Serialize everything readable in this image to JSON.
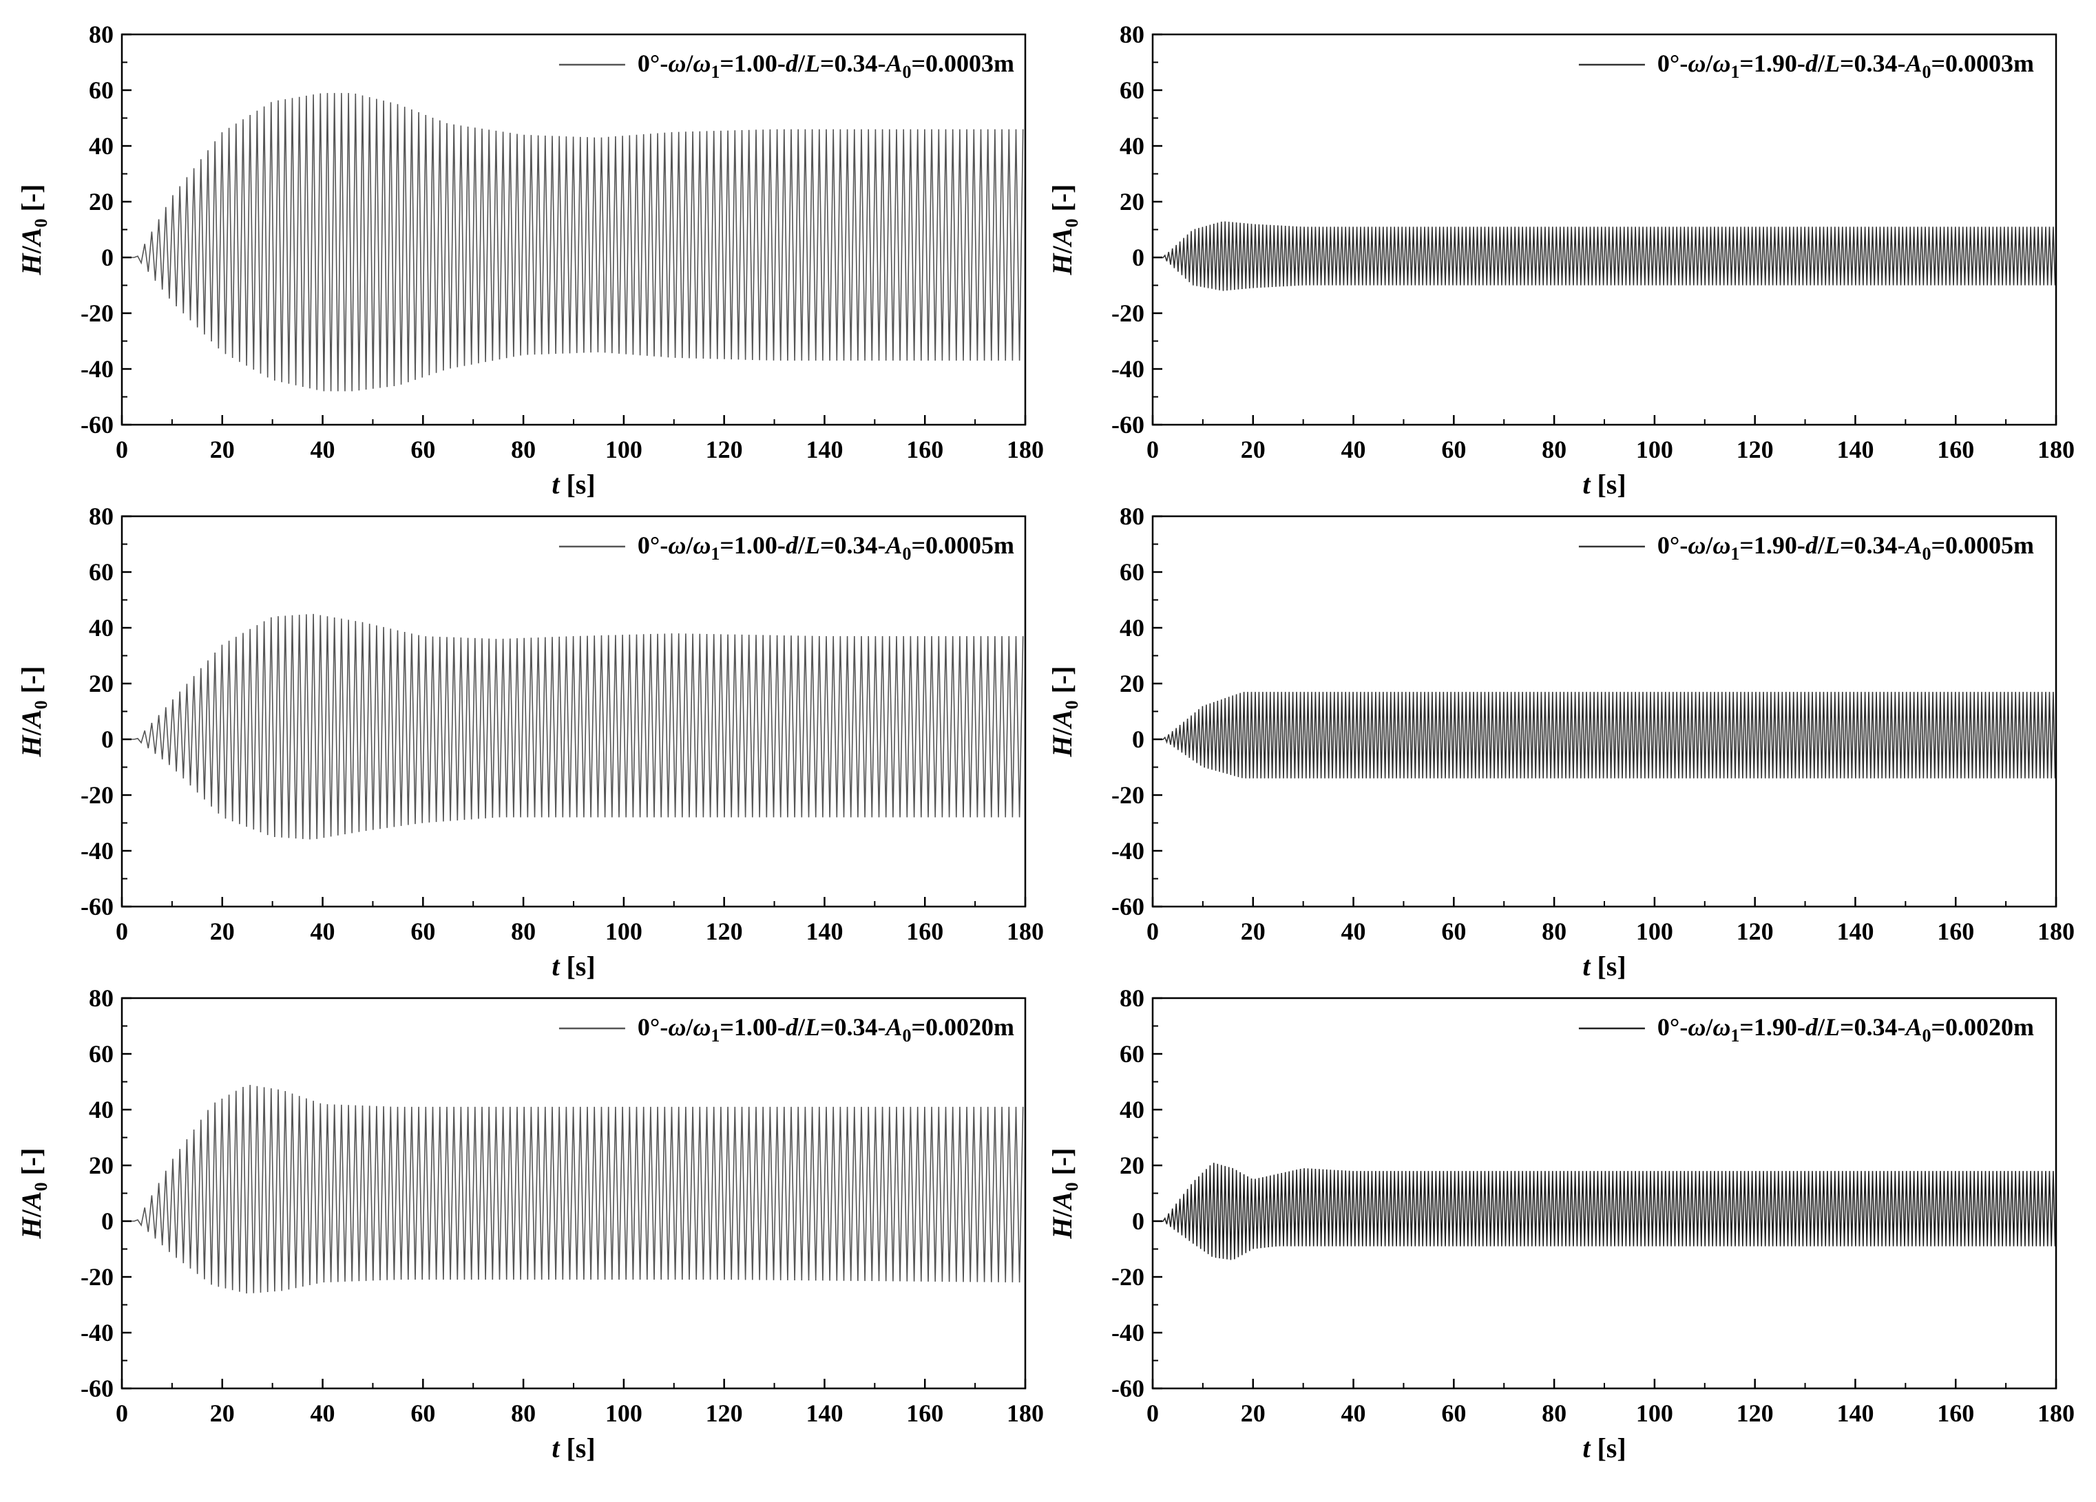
{
  "chart_data": [
    {
      "type": "line",
      "panel": "top-left",
      "legend": {
        "pre": "0°-",
        "omega": "ω",
        "slash": "/",
        "omega1": "ω",
        "one": "1",
        "eq1": "=1.00-",
        "d": "d",
        "slash2": "/",
        "L": "L",
        "eq2": "=0.34-",
        "A": "A",
        "zero": "0",
        "eq3": "=0.0003m"
      },
      "series_color": "#555555",
      "xlim": [
        0,
        180
      ],
      "ylim": [
        -60,
        80
      ],
      "xticks": [
        "0",
        "20",
        "40",
        "60",
        "80",
        "100",
        "120",
        "140",
        "160",
        "180"
      ],
      "yticks": [
        "-60",
        "-40",
        "-20",
        "0",
        "20",
        "40",
        "60",
        "80"
      ],
      "xlabel": {
        "var": "t",
        "unit": " [s]"
      },
      "ylabel": {
        "var1": "H",
        "slash": "/",
        "var2": "A",
        "sub": "0",
        "unit": " [-]"
      },
      "envelope": {
        "t": [
          0,
          3,
          10,
          20,
          30,
          40,
          46,
          55,
          65,
          80,
          95,
          110,
          130,
          150,
          180
        ],
        "upper": [
          0,
          0,
          22,
          45,
          56,
          59,
          59,
          55,
          48,
          44,
          43,
          45,
          46,
          46,
          46
        ],
        "lower": [
          0,
          0,
          -16,
          -34,
          -44,
          -48,
          -48,
          -46,
          -40,
          -35,
          -34,
          -36,
          -37,
          -37,
          -37
        ]
      },
      "period_s": 1.4
    },
    {
      "type": "line",
      "panel": "top-right",
      "legend": {
        "pre": "0°-",
        "omega": "ω",
        "slash": "/",
        "omega1": "ω",
        "one": "1",
        "eq1": "=1.90-",
        "d": "d",
        "slash2": "/",
        "L": "L",
        "eq2": "=0.34-",
        "A": "A",
        "zero": "0",
        "eq3": "=0.0003m"
      },
      "series_color": "#333333",
      "xlim": [
        0,
        180
      ],
      "ylim": [
        -60,
        80
      ],
      "xticks": [
        "0",
        "20",
        "40",
        "60",
        "80",
        "100",
        "120",
        "140",
        "160",
        "180"
      ],
      "yticks": [
        "-60",
        "-40",
        "-20",
        "0",
        "20",
        "40",
        "60",
        "80"
      ],
      "xlabel": {
        "var": "t",
        "unit": " [s]"
      },
      "ylabel": {
        "var1": "H",
        "slash": "/",
        "var2": "A",
        "sub": "0",
        "unit": " [-]"
      },
      "envelope": {
        "t": [
          0,
          2,
          8,
          14,
          20,
          30,
          60,
          100,
          140,
          180
        ],
        "upper": [
          0,
          0,
          10,
          13,
          12,
          11,
          11,
          11,
          11,
          11
        ],
        "lower": [
          0,
          0,
          -10,
          -12,
          -11,
          -10,
          -10,
          -10,
          -10,
          -10
        ]
      },
      "period_s": 0.75
    },
    {
      "type": "line",
      "panel": "middle-left",
      "legend": {
        "pre": "0°-",
        "omega": "ω",
        "slash": "/",
        "omega1": "ω",
        "one": "1",
        "eq1": "=1.00-",
        "d": "d",
        "slash2": "/",
        "L": "L",
        "eq2": "=0.34-",
        "A": "A",
        "zero": "0",
        "eq3": "=0.0005m"
      },
      "series_color": "#555555",
      "xlim": [
        0,
        180
      ],
      "ylim": [
        -60,
        80
      ],
      "xticks": [
        "0",
        "20",
        "40",
        "60",
        "80",
        "100",
        "120",
        "140",
        "160",
        "180"
      ],
      "yticks": [
        "-60",
        "-40",
        "-20",
        "0",
        "20",
        "40",
        "60",
        "80"
      ],
      "xlabel": {
        "var": "t",
        "unit": " [s]"
      },
      "ylabel": {
        "var1": "H",
        "slash": "/",
        "var2": "A",
        "sub": "0",
        "unit": " [-]"
      },
      "envelope": {
        "t": [
          0,
          3,
          10,
          20,
          30,
          38,
          48,
          60,
          75,
          90,
          110,
          140,
          180
        ],
        "upper": [
          0,
          0,
          14,
          34,
          44,
          45,
          42,
          37,
          36,
          37,
          38,
          37,
          37
        ],
        "lower": [
          0,
          0,
          -10,
          -28,
          -35,
          -36,
          -33,
          -30,
          -28,
          -28,
          -28,
          -28,
          -28
        ]
      },
      "period_s": 1.4
    },
    {
      "type": "line",
      "panel": "middle-right",
      "legend": {
        "pre": "0°-",
        "omega": "ω",
        "slash": "/",
        "omega1": "ω",
        "one": "1",
        "eq1": "=1.90-",
        "d": "d",
        "slash2": "/",
        "L": "L",
        "eq2": "=0.34-",
        "A": "A",
        "zero": "0",
        "eq3": "=0.0005m"
      },
      "series_color": "#333333",
      "xlim": [
        0,
        180
      ],
      "ylim": [
        -60,
        80
      ],
      "xticks": [
        "0",
        "20",
        "40",
        "60",
        "80",
        "100",
        "120",
        "140",
        "160",
        "180"
      ],
      "yticks": [
        "-60",
        "-40",
        "-20",
        "0",
        "20",
        "40",
        "60",
        "80"
      ],
      "xlabel": {
        "var": "t",
        "unit": " [s]"
      },
      "ylabel": {
        "var1": "H",
        "slash": "/",
        "var2": "A",
        "sub": "0",
        "unit": " [-]"
      },
      "envelope": {
        "t": [
          0,
          2,
          10,
          18,
          25,
          60,
          100,
          140,
          180
        ],
        "upper": [
          0,
          0,
          12,
          17,
          17,
          17,
          17,
          17,
          17
        ],
        "lower": [
          0,
          0,
          -10,
          -14,
          -14,
          -14,
          -14,
          -14,
          -14
        ]
      },
      "period_s": 0.75
    },
    {
      "type": "line",
      "panel": "bottom-left",
      "legend": {
        "pre": "0°-",
        "omega": "ω",
        "slash": "/",
        "omega1": "ω",
        "one": "1",
        "eq1": "=1.00-",
        "d": "d",
        "slash2": "/",
        "L": "L",
        "eq2": "=0.34-",
        "A": "A",
        "zero": "0",
        "eq3": "=0.0020m"
      },
      "series_color": "#555555",
      "xlim": [
        0,
        180
      ],
      "ylim": [
        -60,
        80
      ],
      "xticks": [
        "0",
        "20",
        "40",
        "60",
        "80",
        "100",
        "120",
        "140",
        "160",
        "180"
      ],
      "yticks": [
        "-60",
        "-40",
        "-20",
        "0",
        "20",
        "40",
        "60",
        "80"
      ],
      "xlabel": {
        "var": "t",
        "unit": " [s]"
      },
      "ylabel": {
        "var1": "H",
        "slash": "/",
        "var2": "A",
        "sub": "0",
        "unit": " [-]"
      },
      "envelope": {
        "t": [
          0,
          3,
          10,
          18,
          25,
          32,
          40,
          55,
          80,
          120,
          180
        ],
        "upper": [
          0,
          0,
          22,
          42,
          49,
          47,
          42,
          41,
          41,
          41,
          41
        ],
        "lower": [
          0,
          0,
          -12,
          -23,
          -26,
          -25,
          -22,
          -21,
          -21,
          -21,
          -22
        ]
      },
      "period_s": 1.4
    },
    {
      "type": "line",
      "panel": "bottom-right",
      "legend": {
        "pre": "0°-",
        "omega": "ω",
        "slash": "/",
        "omega1": "ω",
        "one": "1",
        "eq1": "=1.90-",
        "d": "d",
        "slash2": "/",
        "L": "L",
        "eq2": "=0.34-",
        "A": "A",
        "zero": "0",
        "eq3": "=0.0020m"
      },
      "series_color": "#222222",
      "xlim": [
        0,
        180
      ],
      "ylim": [
        -60,
        80
      ],
      "xticks": [
        "0",
        "20",
        "40",
        "60",
        "80",
        "100",
        "120",
        "140",
        "160",
        "180"
      ],
      "yticks": [
        "-60",
        "-40",
        "-20",
        "0",
        "20",
        "40",
        "60",
        "80"
      ],
      "xlabel": {
        "var": "t",
        "unit": " [s]"
      },
      "ylabel": {
        "var1": "H",
        "slash": "/",
        "var2": "A",
        "sub": "0",
        "unit": " [-]"
      },
      "envelope": {
        "t": [
          0,
          2,
          8,
          12,
          16,
          20,
          25,
          30,
          40,
          60,
          100,
          140,
          180
        ],
        "upper": [
          0,
          0,
          14,
          21,
          19,
          15,
          17,
          19,
          18,
          18,
          18,
          18,
          18
        ],
        "lower": [
          0,
          0,
          -8,
          -13,
          -14,
          -10,
          -9,
          -9,
          -9,
          -9,
          -9,
          -9,
          -9
        ]
      },
      "period_s": 0.75
    }
  ]
}
